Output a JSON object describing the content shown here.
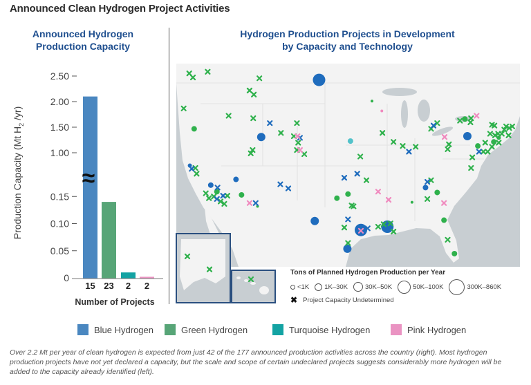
{
  "title": "Announced Clean Hydrogen Project Activities",
  "left_panel": {
    "title_line1": "Announced Hydrogen",
    "title_line2": "Production Capacity"
  },
  "right_panel": {
    "title_line1": "Hydrogen Production Projects in Development",
    "title_line2": "by Capacity and Technology"
  },
  "colors": {
    "blue": "#4a87c0",
    "green": "#57a577",
    "turquoise": "#13a3a3",
    "pink": "#ea93c2",
    "title_blue": "#1f4f8f",
    "map_blue": "#1f6cbd",
    "map_green": "#2fb14c",
    "map_pink": "#f08bbf",
    "map_turquoise": "#52c2ca"
  },
  "chart_data": [
    {
      "type": "bar",
      "categories": [
        "Blue Hydrogen",
        "Green Hydrogen",
        "Turquoise Hydrogen",
        "Pink Hydrogen"
      ],
      "values": [
        2.1,
        0.14,
        0.01,
        0.002
      ],
      "project_counts": [
        "15",
        "23",
        "2",
        "2"
      ],
      "xlabel": "Number of Projects",
      "ylabel": "Production Capacity (Mt H",
      "ylabel_sub": "2",
      "ylabel_end": " /yr)",
      "y_axis": "broken",
      "ylim_lower": [
        0,
        0.15
      ],
      "ylim_upper": [
        1.0,
        2.5
      ],
      "ticks_lower": [
        {
          "v": 0,
          "label": "0"
        },
        {
          "v": 0.05,
          "label": "0.05"
        },
        {
          "v": 0.1,
          "label": "0.10"
        },
        {
          "v": 0.15,
          "label": "0.15"
        }
      ],
      "ticks_upper": [
        {
          "v": 1.0,
          "label": "1.00"
        },
        {
          "v": 1.5,
          "label": "1.50"
        },
        {
          "v": 2.0,
          "label": "2.00"
        },
        {
          "v": 2.5,
          "label": "2.50"
        }
      ],
      "break_symbol": "≈",
      "grid": false
    },
    {
      "type": "scatter",
      "description_kind": "map",
      "size_classes": [
        "<1K",
        "1K–30K",
        "30K–50K",
        "50K–100K",
        "300K–860K"
      ],
      "undetermined_label": "Project Capacity Undetermined",
      "legend_title": "Tons of Planned Hydrogen Production per Year",
      "markers_undetermined": {
        "green": [
          [
            -122.9,
            48.8
          ],
          [
            -122.3,
            48.3
          ],
          [
            -119.9,
            49.0
          ],
          [
            -111.5,
            48.2
          ],
          [
            -113.1,
            46.7
          ],
          [
            -112.4,
            46.2
          ],
          [
            -123.8,
            44.5
          ],
          [
            -116.5,
            43.6
          ],
          [
            -112.5,
            43.3
          ],
          [
            -105.4,
            42.7
          ],
          [
            -108.0,
            41.5
          ],
          [
            -105.9,
            41.1
          ],
          [
            -105.2,
            40.3
          ],
          [
            -105.4,
            39.4
          ],
          [
            -104.2,
            38.9
          ],
          [
            -112.6,
            39.4
          ],
          [
            -112.9,
            39.0
          ],
          [
            -121.9,
            37.2
          ],
          [
            -121.7,
            36.5
          ],
          [
            -120.2,
            34.1
          ],
          [
            -119.7,
            33.5
          ],
          [
            -116.7,
            33.8
          ],
          [
            -117.2,
            32.8
          ],
          [
            -117.8,
            33.1
          ],
          [
            -118.9,
            33.7
          ],
          [
            -97.7,
            29.9
          ],
          [
            -96.5,
            32.6
          ],
          [
            -91.5,
            41.5
          ],
          [
            -89.7,
            40.4
          ],
          [
            -88.2,
            39.9
          ],
          [
            -86.1,
            39.8
          ],
          [
            -95.1,
            38.6
          ],
          [
            -94.1,
            35.7
          ],
          [
            -96.2,
            32.5
          ],
          [
            -82.6,
            42.7
          ],
          [
            -83.6,
            42.0
          ],
          [
            -78.9,
            43.0
          ],
          [
            -77.1,
            43.3
          ],
          [
            -77.2,
            42.8
          ],
          [
            -80.7,
            40.1
          ],
          [
            -80.9,
            39.5
          ],
          [
            -76.9,
            38.5
          ],
          [
            -77.1,
            37.2
          ],
          [
            -83.6,
            35.7
          ],
          [
            -84.2,
            33.4
          ],
          [
            -92.2,
            30.0
          ],
          [
            -91.3,
            30.3
          ],
          [
            -90.2,
            30.4
          ],
          [
            -89.7,
            29.4
          ],
          [
            -80.9,
            28.4
          ],
          [
            -75.1,
            39.2
          ],
          [
            -74.4,
            39.2
          ],
          [
            -74.8,
            40.3
          ],
          [
            -74.0,
            41.4
          ],
          [
            -73.2,
            41.2
          ],
          [
            -72.7,
            41.4
          ],
          [
            -72.1,
            41.4
          ],
          [
            -71.0,
            41.2
          ],
          [
            -72.6,
            40.3
          ],
          [
            -73.7,
            39.8
          ],
          [
            -73.7,
            42.5
          ],
          [
            -73.3,
            42.4
          ],
          [
            -71.7,
            41.9
          ],
          [
            -71.4,
            42.3
          ],
          [
            -70.9,
            42.1
          ],
          [
            -70.4,
            42.3
          ],
          [
            -97.1,
            28.0
          ]
        ],
        "blue": [
          [
            -109.8,
            42.7
          ],
          [
            -104.9,
            40.9
          ],
          [
            -118.3,
            34.8
          ],
          [
            -117.4,
            33.8
          ],
          [
            -118.4,
            33.4
          ],
          [
            -112.1,
            32.9
          ],
          [
            -108.1,
            35.2
          ],
          [
            -106.8,
            34.7
          ],
          [
            -97.7,
            36.0
          ],
          [
            -97.1,
            30.9
          ],
          [
            -122.5,
            37.1
          ],
          [
            -83.2,
            42.4
          ],
          [
            -87.2,
            39.2
          ],
          [
            -95.6,
            36.5
          ],
          [
            -84.2,
            35.5
          ],
          [
            -75.8,
            39.2
          ],
          [
            -93.9,
            29.8
          ]
        ],
        "pink": [
          [
            -105.3,
            41.1
          ],
          [
            -104.9,
            39.4
          ],
          [
            -113.1,
            32.9
          ],
          [
            -76.2,
            43.6
          ],
          [
            -81.4,
            41.0
          ],
          [
            -92.2,
            34.3
          ],
          [
            -90.5,
            33.3
          ],
          [
            -81.5,
            32.9
          ],
          [
            -95.0,
            29.5
          ]
        ]
      },
      "markers_sized": {
        "green": [
          [
            -122.1,
            42.0,
            2
          ],
          [
            -114.4,
            33.9,
            2
          ],
          [
            -118.4,
            34.3,
            2
          ],
          [
            -98.9,
            33.5,
            2
          ],
          [
            -97.1,
            34.0,
            2
          ],
          [
            -111.8,
            32.5,
            0
          ],
          [
            -78.1,
            43.2,
            2
          ],
          [
            -76.0,
            39.9,
            2
          ],
          [
            -73.4,
            40.4,
            2
          ],
          [
            -72.6,
            40.9,
            1
          ],
          [
            -82.6,
            34.2,
            2
          ],
          [
            -81.5,
            30.8,
            2
          ],
          [
            -79.8,
            26.7,
            2
          ],
          [
            -86.7,
            33.0,
            0
          ],
          [
            -93.2,
            45.4,
            0
          ]
        ],
        "blue": [
          [
            -101.8,
            48.0,
            4
          ],
          [
            -111.2,
            41.0,
            3
          ],
          [
            -122.8,
            37.5,
            1
          ],
          [
            -119.4,
            35.1,
            2
          ],
          [
            -115.3,
            35.8,
            2
          ],
          [
            -102.5,
            30.7,
            3
          ],
          [
            -77.7,
            41.1,
            3
          ],
          [
            -84.5,
            34.8,
            2
          ],
          [
            -95.0,
            29.6,
            4
          ],
          [
            -90.7,
            30.0,
            4
          ],
          [
            -97.2,
            27.3,
            3
          ]
        ],
        "pink": [
          [
            -91.6,
            44.2,
            0
          ]
        ],
        "turquoise": [
          [
            -96.7,
            40.5,
            2
          ]
        ]
      },
      "inset_alaska_undetermined_green": [
        [
          -162,
          65
        ],
        [
          -146,
          61
        ]
      ],
      "inset_hawaii_undetermined_green": [
        [
          -157,
          21.5
        ]
      ]
    }
  ],
  "legend": [
    {
      "label": "Blue Hydrogen",
      "color": "#4a87c0"
    },
    {
      "label": "Green Hydrogen",
      "color": "#57a577"
    },
    {
      "label": "Turquoise Hydrogen",
      "color": "#13a3a3"
    },
    {
      "label": "Pink Hydrogen",
      "color": "#ea93c2"
    }
  ],
  "caption": "Over 2.2 Mt per year of clean hydrogen is expected from just 42 of the 177 announced production activities across the country (right). Most hydrogen production projects have not yet declared a capacity, but the scale and scope of certain undeclared projects suggests considerably more hydrogen will be added to the capacity already identified (left)."
}
